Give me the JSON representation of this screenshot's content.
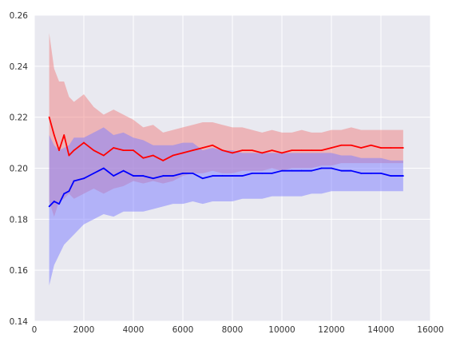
{
  "chart_data": {
    "type": "line",
    "title": "",
    "xlabel": "",
    "ylabel": "",
    "xlim": [
      0,
      16000
    ],
    "ylim": [
      0.14,
      0.26
    ],
    "x_ticks": [
      0,
      2000,
      4000,
      6000,
      8000,
      10000,
      12000,
      14000,
      16000
    ],
    "x_tick_labels": [
      "0",
      "2000",
      "4000",
      "6000",
      "8000",
      "10000",
      "12000",
      "14000",
      "16000"
    ],
    "y_ticks": [
      0.14,
      0.16,
      0.18,
      0.2,
      0.22,
      0.24,
      0.26
    ],
    "y_tick_labels": [
      "0.14",
      "0.16",
      "0.18",
      "0.20",
      "0.22",
      "0.24",
      "0.26"
    ],
    "grid": true,
    "background": "#e9e9f0",
    "series": [
      {
        "color": "#ff0000",
        "band_color": "#f08080",
        "x": [
          600,
          800,
          1000,
          1200,
          1400,
          1600,
          2000,
          2400,
          2800,
          3200,
          3600,
          4000,
          4400,
          4800,
          5200,
          5600,
          6000,
          6400,
          6800,
          7200,
          7600,
          8000,
          8400,
          8800,
          9200,
          9600,
          10000,
          10400,
          10800,
          11200,
          11600,
          12000,
          12400,
          12800,
          13200,
          13600,
          14000,
          14400,
          14900
        ],
        "mean": [
          0.22,
          0.213,
          0.207,
          0.213,
          0.205,
          0.207,
          0.21,
          0.207,
          0.205,
          0.208,
          0.207,
          0.207,
          0.204,
          0.205,
          0.203,
          0.205,
          0.206,
          0.207,
          0.208,
          0.209,
          0.207,
          0.206,
          0.207,
          0.207,
          0.206,
          0.207,
          0.206,
          0.207,
          0.207,
          0.207,
          0.207,
          0.208,
          0.209,
          0.209,
          0.208,
          0.209,
          0.208,
          0.208,
          0.208
        ],
        "lower": [
          0.187,
          0.181,
          0.187,
          0.188,
          0.19,
          0.188,
          0.19,
          0.192,
          0.19,
          0.192,
          0.193,
          0.195,
          0.194,
          0.195,
          0.194,
          0.195,
          0.197,
          0.198,
          0.198,
          0.199,
          0.198,
          0.198,
          0.199,
          0.199,
          0.199,
          0.2,
          0.199,
          0.2,
          0.2,
          0.2,
          0.201,
          0.201,
          0.202,
          0.202,
          0.202,
          0.202,
          0.202,
          0.202,
          0.202
        ],
        "upper": [
          0.253,
          0.239,
          0.234,
          0.234,
          0.228,
          0.226,
          0.229,
          0.224,
          0.221,
          0.223,
          0.221,
          0.219,
          0.216,
          0.217,
          0.214,
          0.215,
          0.216,
          0.217,
          0.218,
          0.218,
          0.217,
          0.216,
          0.216,
          0.215,
          0.214,
          0.215,
          0.214,
          0.214,
          0.215,
          0.214,
          0.214,
          0.215,
          0.215,
          0.216,
          0.215,
          0.215,
          0.215,
          0.215,
          0.215
        ]
      },
      {
        "color": "#0000ff",
        "band_color": "#7b7bff",
        "x": [
          600,
          800,
          1000,
          1200,
          1400,
          1600,
          2000,
          2400,
          2800,
          3200,
          3600,
          4000,
          4400,
          4800,
          5200,
          5600,
          6000,
          6400,
          6800,
          7200,
          7600,
          8000,
          8400,
          8800,
          9200,
          9600,
          10000,
          10400,
          10800,
          11200,
          11600,
          12000,
          12400,
          12800,
          13200,
          13600,
          14000,
          14400,
          14900
        ],
        "mean": [
          0.185,
          0.187,
          0.186,
          0.19,
          0.191,
          0.195,
          0.196,
          0.198,
          0.2,
          0.197,
          0.199,
          0.197,
          0.197,
          0.196,
          0.197,
          0.197,
          0.198,
          0.198,
          0.196,
          0.197,
          0.197,
          0.197,
          0.197,
          0.198,
          0.198,
          0.198,
          0.199,
          0.199,
          0.199,
          0.199,
          0.2,
          0.2,
          0.199,
          0.199,
          0.198,
          0.198,
          0.198,
          0.197,
          0.197
        ],
        "lower": [
          0.154,
          0.162,
          0.166,
          0.17,
          0.172,
          0.174,
          0.178,
          0.18,
          0.182,
          0.181,
          0.183,
          0.183,
          0.183,
          0.184,
          0.185,
          0.186,
          0.186,
          0.187,
          0.186,
          0.187,
          0.187,
          0.187,
          0.188,
          0.188,
          0.188,
          0.189,
          0.189,
          0.189,
          0.189,
          0.19,
          0.19,
          0.191,
          0.191,
          0.191,
          0.191,
          0.191,
          0.191,
          0.191,
          0.191
        ],
        "upper": [
          0.213,
          0.209,
          0.207,
          0.208,
          0.209,
          0.212,
          0.212,
          0.214,
          0.216,
          0.213,
          0.214,
          0.212,
          0.211,
          0.209,
          0.209,
          0.209,
          0.21,
          0.21,
          0.207,
          0.208,
          0.207,
          0.207,
          0.206,
          0.206,
          0.206,
          0.206,
          0.206,
          0.206,
          0.206,
          0.206,
          0.206,
          0.206,
          0.205,
          0.205,
          0.204,
          0.204,
          0.204,
          0.203,
          0.203
        ]
      }
    ]
  }
}
